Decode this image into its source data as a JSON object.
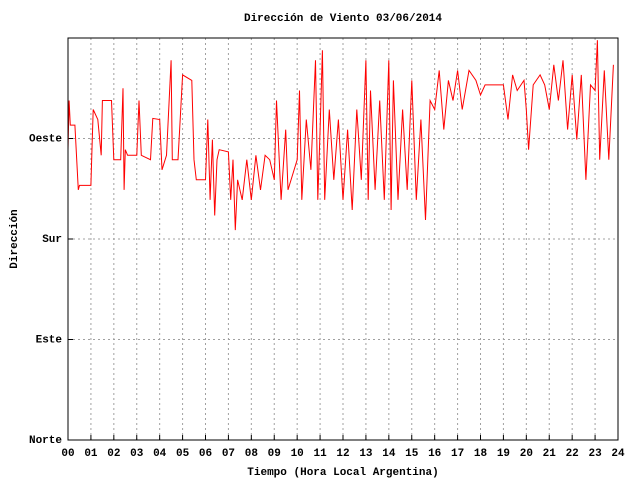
{
  "chart_data": {
    "type": "line",
    "title": "Dirección de Viento 03/06/2014",
    "xlabel": "Tiempo (Hora Local Argentina)",
    "ylabel": "Dirección",
    "xlim": [
      0,
      24
    ],
    "xticks": [
      {
        "value": 0,
        "label": "00"
      },
      {
        "value": 1,
        "label": "01"
      },
      {
        "value": 2,
        "label": "02"
      },
      {
        "value": 3,
        "label": "03"
      },
      {
        "value": 4,
        "label": "04"
      },
      {
        "value": 5,
        "label": "05"
      },
      {
        "value": 6,
        "label": "06"
      },
      {
        "value": 7,
        "label": "07"
      },
      {
        "value": 8,
        "label": "08"
      },
      {
        "value": 9,
        "label": "09"
      },
      10,
      11,
      12,
      13,
      14,
      15,
      16,
      17,
      18,
      19,
      20,
      21,
      22,
      23,
      24
    ],
    "ylim": [
      0,
      360
    ],
    "yticks": [
      {
        "value": 0,
        "label": "Norte"
      },
      {
        "value": 90,
        "label": "Este"
      },
      {
        "value": 180,
        "label": "Sur"
      },
      {
        "value": 270,
        "label": "Oeste"
      }
    ],
    "grid": true,
    "series": [
      {
        "color": "#ff0000",
        "x": [
          0.0,
          0.05,
          0.1,
          0.3,
          0.45,
          0.5,
          1.0,
          1.05,
          1.1,
          1.3,
          1.45,
          1.5,
          1.9,
          2.0,
          2.3,
          2.4,
          2.45,
          2.5,
          2.6,
          3.0,
          3.1,
          3.2,
          3.6,
          3.7,
          4.0,
          4.1,
          4.3,
          4.5,
          4.55,
          4.8,
          5.0,
          5.4,
          5.5,
          5.6,
          6.0,
          6.1,
          6.2,
          6.3,
          6.4,
          6.5,
          6.6,
          7.0,
          7.1,
          7.2,
          7.3,
          7.4,
          7.6,
          7.8,
          8.0,
          8.2,
          8.4,
          8.6,
          8.8,
          9.0,
          9.1,
          9.3,
          9.5,
          9.6,
          10.0,
          10.1,
          10.2,
          10.4,
          10.6,
          10.8,
          10.9,
          11.0,
          11.1,
          11.2,
          11.4,
          11.6,
          11.8,
          12.0,
          12.2,
          12.4,
          12.6,
          12.8,
          13.0,
          13.1,
          13.2,
          13.4,
          13.6,
          13.8,
          14.0,
          14.1,
          14.2,
          14.4,
          14.6,
          14.8,
          15.0,
          15.2,
          15.4,
          15.6,
          15.8,
          16.0,
          16.2,
          16.4,
          16.6,
          16.8,
          17.0,
          17.2,
          17.5,
          17.8,
          18.0,
          18.2,
          18.6,
          19.0,
          19.2,
          19.4,
          19.6,
          19.9,
          20.0,
          20.1,
          20.3,
          20.6,
          20.8,
          21.0,
          21.2,
          21.4,
          21.6,
          21.8,
          22.0,
          22.2,
          22.4,
          22.6,
          22.8,
          23.0,
          23.1,
          23.2,
          23.4,
          23.6,
          23.8
        ],
        "values": [
          260,
          304,
          282,
          282,
          224,
          228,
          228,
          264,
          296,
          287,
          255,
          304,
          304,
          251,
          251,
          315,
          224,
          260,
          255,
          255,
          304,
          255,
          251,
          288,
          287,
          242,
          255,
          340,
          251,
          251,
          327,
          322,
          251,
          233,
          233,
          287,
          215,
          269,
          201,
          251,
          260,
          258,
          215,
          251,
          188,
          233,
          215,
          251,
          215,
          255,
          224,
          255,
          251,
          233,
          304,
          215,
          278,
          224,
          251,
          313,
          215,
          287,
          242,
          340,
          215,
          278,
          349,
          215,
          296,
          233,
          287,
          215,
          278,
          206,
          296,
          233,
          340,
          215,
          313,
          224,
          304,
          215,
          340,
          206,
          322,
          215,
          296,
          224,
          322,
          215,
          287,
          197,
          304,
          296,
          331,
          278,
          322,
          304,
          331,
          296,
          331,
          322,
          309,
          318,
          318,
          318,
          287,
          327,
          313,
          322,
          296,
          260,
          318,
          327,
          318,
          296,
          336,
          304,
          340,
          278,
          327,
          269,
          327,
          233,
          318,
          313,
          358,
          251,
          331,
          251,
          336
        ]
      }
    ]
  }
}
